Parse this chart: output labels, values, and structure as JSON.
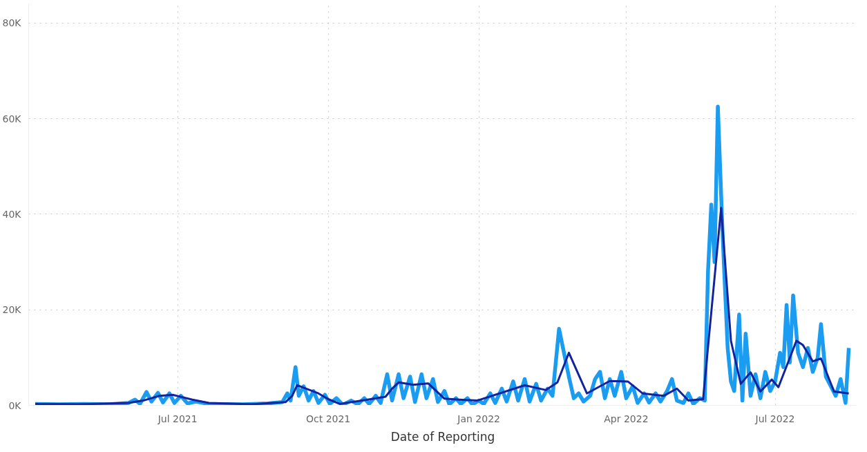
{
  "chart_data": {
    "type": "line",
    "xlabel": "Date of Reporting",
    "grid": true,
    "line_style": "solid",
    "marker": "none",
    "xlim": [
      "2021-04-01",
      "2022-08-20"
    ],
    "ylim": [
      0,
      84000
    ],
    "xticks": [
      {
        "value": "2021-07-01",
        "label": "Jul 2021"
      },
      {
        "value": "2021-10-01",
        "label": "Oct 2021"
      },
      {
        "value": "2022-01-01",
        "label": "Jan 2022"
      },
      {
        "value": "2022-04-01",
        "label": "Apr 2022"
      },
      {
        "value": "2022-07-01",
        "label": "Jul 2022"
      }
    ],
    "yticks": [
      {
        "value": 0,
        "label": "0K"
      },
      {
        "value": 20000,
        "label": "20K"
      },
      {
        "value": 40000,
        "label": "40K"
      },
      {
        "value": 60000,
        "label": "60K"
      },
      {
        "value": 80000,
        "label": "80K"
      }
    ],
    "series": [
      {
        "color": "#1a9cf0",
        "x": [
          "2021-04-05",
          "2021-04-20",
          "2021-05-05",
          "2021-05-20",
          "2021-06-01",
          "2021-06-05",
          "2021-06-08",
          "2021-06-12",
          "2021-06-15",
          "2021-06-19",
          "2021-06-22",
          "2021-06-26",
          "2021-06-29",
          "2021-07-03",
          "2021-07-07",
          "2021-07-12",
          "2021-07-20",
          "2021-08-10",
          "2021-08-25",
          "2021-09-03",
          "2021-09-06",
          "2021-09-08",
          "2021-09-11",
          "2021-09-13",
          "2021-09-16",
          "2021-09-19",
          "2021-09-22",
          "2021-09-25",
          "2021-09-29",
          "2021-10-02",
          "2021-10-06",
          "2021-10-10",
          "2021-10-15",
          "2021-10-19",
          "2021-10-23",
          "2021-10-26",
          "2021-10-30",
          "2021-11-02",
          "2021-11-06",
          "2021-11-09",
          "2021-11-13",
          "2021-11-16",
          "2021-11-20",
          "2021-11-23",
          "2021-11-27",
          "2021-11-30",
          "2021-12-04",
          "2021-12-07",
          "2021-12-11",
          "2021-12-14",
          "2021-12-18",
          "2021-12-21",
          "2021-12-25",
          "2021-12-28",
          "2022-01-01",
          "2022-01-04",
          "2022-01-08",
          "2022-01-11",
          "2022-01-15",
          "2022-01-18",
          "2022-01-22",
          "2022-01-25",
          "2022-01-29",
          "2022-02-01",
          "2022-02-05",
          "2022-02-08",
          "2022-02-12",
          "2022-02-15",
          "2022-02-19",
          "2022-02-22",
          "2022-02-25",
          "2022-02-28",
          "2022-03-03",
          "2022-03-06",
          "2022-03-10",
          "2022-03-13",
          "2022-03-16",
          "2022-03-19",
          "2022-03-22",
          "2022-03-25",
          "2022-03-29",
          "2022-04-01",
          "2022-04-05",
          "2022-04-08",
          "2022-04-12",
          "2022-04-15",
          "2022-04-19",
          "2022-04-22",
          "2022-04-26",
          "2022-04-29",
          "2022-05-02",
          "2022-05-06",
          "2022-05-09",
          "2022-05-12",
          "2022-05-16",
          "2022-05-19",
          "2022-05-21",
          "2022-05-23",
          "2022-05-25",
          "2022-05-27",
          "2022-05-30",
          "2022-06-02",
          "2022-06-04",
          "2022-06-06",
          "2022-06-09",
          "2022-06-11",
          "2022-06-13",
          "2022-06-16",
          "2022-06-19",
          "2022-06-22",
          "2022-06-25",
          "2022-06-28",
          "2022-07-01",
          "2022-07-04",
          "2022-07-06",
          "2022-07-08",
          "2022-07-10",
          "2022-07-12",
          "2022-07-15",
          "2022-07-18",
          "2022-07-21",
          "2022-07-24",
          "2022-07-27",
          "2022-07-29",
          "2022-08-01",
          "2022-08-04",
          "2022-08-07",
          "2022-08-10",
          "2022-08-13",
          "2022-08-15"
        ],
        "values": [
          300,
          200,
          300,
          200,
          500,
          1200,
          300,
          2800,
          800,
          2600,
          600,
          2500,
          500,
          2000,
          400,
          800,
          300,
          200,
          400,
          700,
          2500,
          1000,
          8000,
          2000,
          4000,
          1000,
          3000,
          500,
          2200,
          300,
          1500,
          100,
          1000,
          200,
          1500,
          300,
          2000,
          500,
          6500,
          1000,
          6500,
          1500,
          6000,
          700,
          6500,
          1500,
          5500,
          700,
          3000,
          200,
          1500,
          300,
          1500,
          200,
          1000,
          300,
          2500,
          500,
          3500,
          800,
          5000,
          1000,
          5500,
          800,
          4500,
          1000,
          3500,
          2000,
          16000,
          11000,
          6000,
          1500,
          2500,
          800,
          2000,
          5500,
          7000,
          1500,
          5500,
          2000,
          7000,
          1500,
          4000,
          500,
          2500,
          600,
          2500,
          800,
          3000,
          5500,
          1000,
          500,
          2500,
          300,
          1500,
          1000,
          28000,
          42000,
          30000,
          62500,
          35000,
          12000,
          5000,
          3000,
          19000,
          1000,
          15000,
          2000,
          6500,
          1500,
          7000,
          3000,
          5000,
          11000,
          8000,
          21000,
          9000,
          23000,
          11000,
          8000,
          12000,
          7000,
          10000,
          17000,
          6000,
          4000,
          2000,
          5500,
          500,
          12000
        ]
      },
      {
        "color": "#12239e",
        "x": [
          "2021-04-05",
          "2021-05-01",
          "2021-06-01",
          "2021-06-10",
          "2021-06-20",
          "2021-06-28",
          "2021-07-10",
          "2021-07-20",
          "2021-08-15",
          "2021-09-05",
          "2021-09-09",
          "2021-09-12",
          "2021-09-25",
          "2021-10-01",
          "2021-10-08",
          "2021-10-25",
          "2021-11-05",
          "2021-11-09",
          "2021-11-13",
          "2021-11-22",
          "2021-12-01",
          "2021-12-11",
          "2021-12-20",
          "2021-12-31",
          "2022-01-29",
          "2022-02-11",
          "2022-02-18",
          "2022-02-25",
          "2022-03-08",
          "2022-03-22",
          "2022-04-02",
          "2022-04-11",
          "2022-04-24",
          "2022-05-02",
          "2022-05-09",
          "2022-05-18",
          "2022-05-29",
          "2022-06-04",
          "2022-06-10",
          "2022-06-16",
          "2022-06-22",
          "2022-06-29",
          "2022-07-03",
          "2022-07-14",
          "2022-07-18",
          "2022-07-24",
          "2022-07-29",
          "2022-08-06",
          "2022-08-15"
        ],
        "values": [
          300,
          200,
          500,
          1000,
          2000,
          2200,
          1200,
          500,
          200,
          700,
          2000,
          4200,
          2500,
          1300,
          300,
          1200,
          1800,
          3500,
          4800,
          4300,
          4600,
          1400,
          1200,
          1000,
          4200,
          3200,
          4800,
          11000,
          2500,
          5100,
          5000,
          2500,
          2000,
          3500,
          1000,
          1300,
          41300,
          13500,
          4500,
          6900,
          2900,
          5400,
          3800,
          13500,
          12600,
          9200,
          9800,
          2900,
          2500
        ]
      }
    ]
  }
}
